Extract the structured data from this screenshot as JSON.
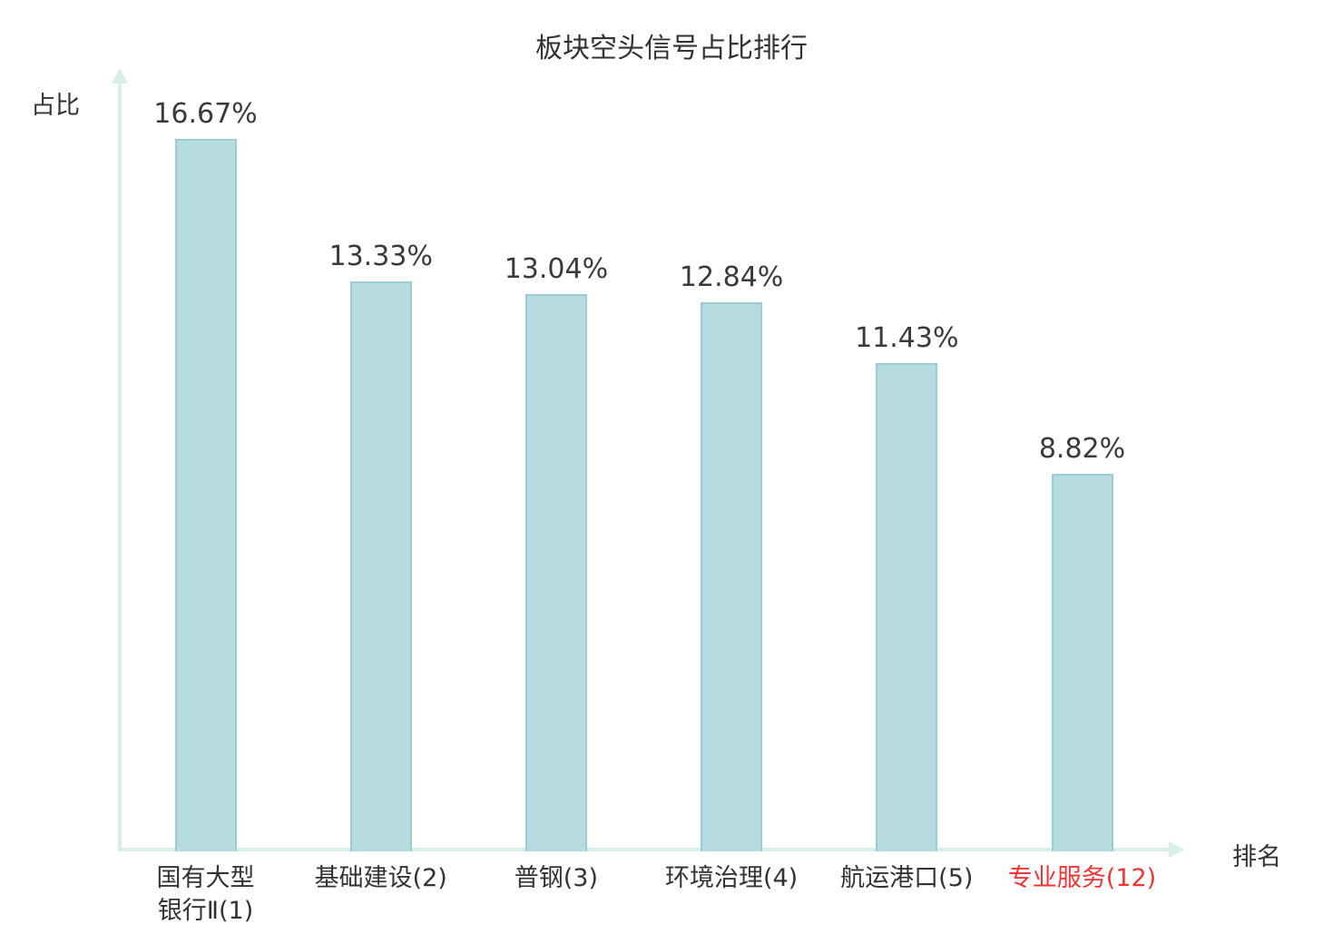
{
  "chart_data": {
    "type": "bar",
    "title": "板块空头信号占比排行",
    "xlabel": "排名",
    "ylabel": "占比",
    "categories": [
      "国有大型\n银行Ⅱ(1)",
      "基础建设(2)",
      "普钢(3)",
      "环境治理(4)",
      "航运港口(5)",
      "专业服务(12)"
    ],
    "values": [
      16.67,
      13.33,
      13.04,
      12.84,
      11.43,
      8.82
    ],
    "value_labels": [
      "16.67%",
      "13.33%",
      "13.04%",
      "12.84%",
      "11.43%",
      "8.82%"
    ],
    "highlight_index": 5,
    "ylim": [
      0,
      18
    ],
    "grid": false,
    "legend": "none",
    "bar_color": "#b6dbe0",
    "bar_border_color": "#9ccdd3",
    "axis_color": "#d8efe8",
    "text_color": "#383838",
    "highlight_color": "#f03535"
  }
}
